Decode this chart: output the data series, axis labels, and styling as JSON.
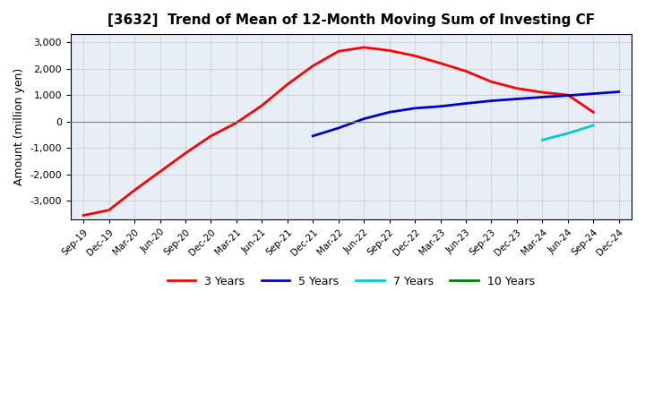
{
  "title": "[3632]  Trend of Mean of 12-Month Moving Sum of Investing CF",
  "ylabel": "Amount (million yen)",
  "ylim": [
    -3700,
    3300
  ],
  "yticks": [
    -3000,
    -2000,
    -1000,
    0,
    1000,
    2000,
    3000
  ],
  "background_color": "#ffffff",
  "grid_color": "#999999",
  "x_labels": [
    "Sep-19",
    "Dec-19",
    "Mar-20",
    "Jun-20",
    "Sep-20",
    "Dec-20",
    "Mar-21",
    "Jun-21",
    "Sep-21",
    "Dec-21",
    "Mar-22",
    "Jun-22",
    "Sep-22",
    "Dec-22",
    "Mar-23",
    "Jun-23",
    "Sep-23",
    "Dec-23",
    "Mar-24",
    "Jun-24",
    "Sep-24",
    "Dec-24"
  ],
  "series": {
    "3yr": {
      "color": "#ff0000",
      "linewidth": 2.0,
      "points": [
        [
          0,
          -3550
        ],
        [
          1,
          -3350
        ],
        [
          2,
          -2600
        ],
        [
          3,
          -1900
        ],
        [
          4,
          -1200
        ],
        [
          5,
          -550
        ],
        [
          6,
          -50
        ],
        [
          7,
          600
        ],
        [
          8,
          1400
        ],
        [
          9,
          2100
        ],
        [
          10,
          2650
        ],
        [
          11,
          2800
        ],
        [
          12,
          2680
        ],
        [
          13,
          2480
        ],
        [
          14,
          2200
        ],
        [
          15,
          1900
        ],
        [
          16,
          1500
        ],
        [
          17,
          1250
        ],
        [
          18,
          1100
        ],
        [
          19,
          1000
        ],
        [
          20,
          350
        ]
      ]
    },
    "5yr": {
      "color": "#0000cc",
      "linewidth": 2.0,
      "points": [
        [
          9,
          -550
        ],
        [
          10,
          -250
        ],
        [
          11,
          100
        ],
        [
          12,
          350
        ],
        [
          13,
          500
        ],
        [
          14,
          570
        ],
        [
          15,
          680
        ],
        [
          16,
          780
        ],
        [
          17,
          850
        ],
        [
          18,
          920
        ],
        [
          19,
          980
        ],
        [
          20,
          1050
        ],
        [
          21,
          1120
        ]
      ]
    },
    "7yr": {
      "color": "#00cccc",
      "linewidth": 2.0,
      "points": [
        [
          18,
          -700
        ],
        [
          19,
          -450
        ],
        [
          20,
          -150
        ]
      ]
    },
    "10yr": {
      "color": "#008000",
      "linewidth": 2.0,
      "points": []
    }
  },
  "legend": [
    {
      "label": "3 Years",
      "color": "#ff0000"
    },
    {
      "label": "5 Years",
      "color": "#0000cc"
    },
    {
      "label": "7 Years",
      "color": "#00cccc"
    },
    {
      "label": "10 Years",
      "color": "#008000"
    }
  ]
}
